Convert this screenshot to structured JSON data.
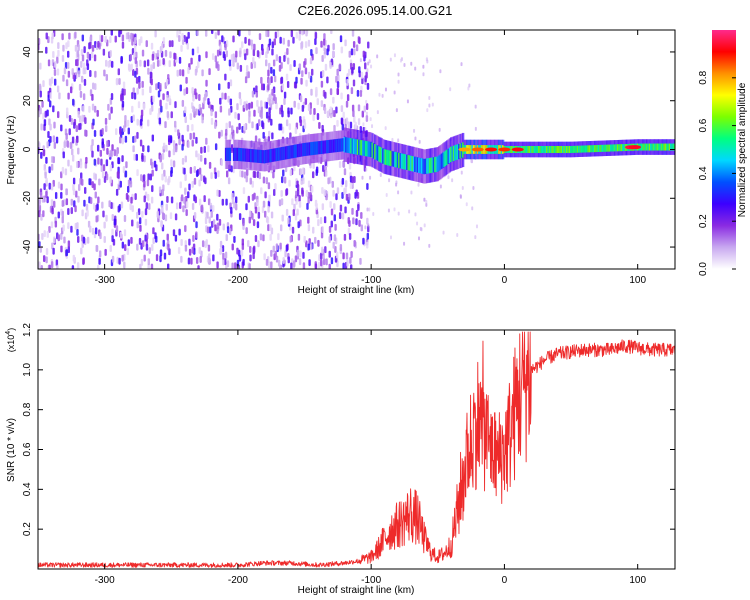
{
  "title": "C2E6.2026.095.14.00.G21",
  "chart_data": [
    {
      "type": "heatmap",
      "name": "spectrogram",
      "xlabel": "Height of straight line (km)",
      "ylabel": "Frequency (Hz)",
      "xlim": [
        -350,
        128
      ],
      "ylim": [
        -49,
        49
      ],
      "xticks": [
        -300,
        -200,
        -100,
        0,
        100
      ],
      "xtick_labels": [
        "-300",
        "-200",
        "-100",
        "0",
        "100"
      ],
      "yticks": [
        -40,
        -20,
        0,
        20,
        40
      ],
      "ytick_labels": [
        "-40",
        "-20",
        "0",
        "20",
        "40"
      ],
      "noise_region_end_km": -110,
      "tone_ridge": [
        {
          "x": -200,
          "f": -2
        },
        {
          "x": -180,
          "f": -3
        },
        {
          "x": -150,
          "f": 0
        },
        {
          "x": -120,
          "f": 2
        },
        {
          "x": -100,
          "f": 0
        },
        {
          "x": -90,
          "f": -3
        },
        {
          "x": -75,
          "f": -5
        },
        {
          "x": -60,
          "f": -7
        },
        {
          "x": -50,
          "f": -6
        },
        {
          "x": -40,
          "f": -2
        },
        {
          "x": -30,
          "f": 0
        },
        {
          "x": -20,
          "f": 0
        },
        {
          "x": 0,
          "f": 0
        },
        {
          "x": 50,
          "f": 0
        },
        {
          "x": 100,
          "f": 1
        },
        {
          "x": 128,
          "f": 1
        }
      ],
      "colorbar": {
        "label": "Normalized spectral amplitude",
        "range": [
          0,
          1
        ],
        "ticks": [
          0.0,
          0.2,
          0.4,
          0.6,
          0.8
        ],
        "tick_labels": [
          "0.0",
          "0.2",
          "0.4",
          "0.6",
          "0.8"
        ],
        "colors": [
          "#ffffff",
          "#c8a8f0",
          "#8a2be2",
          "#3c00ff",
          "#0050ff",
          "#00d8ff",
          "#00ff80",
          "#7cff00",
          "#ffff00",
          "#ff9000",
          "#ff0000",
          "#ff2a8c"
        ]
      }
    },
    {
      "type": "line",
      "name": "snr",
      "xlabel": "Height of straight line (km)",
      "ylabel": "SNR (10 * v/v)",
      "scale_note": "(x10",
      "scale_exponent": "4",
      "xlim": [
        -350,
        128
      ],
      "ylim": [
        0,
        1.2
      ],
      "xticks": [
        -300,
        -200,
        -100,
        0,
        100
      ],
      "xtick_labels": [
        "-300",
        "-200",
        "-100",
        "0",
        "100"
      ],
      "yticks": [
        0.2,
        0.4,
        0.6,
        0.8,
        1.0,
        1.2
      ],
      "ytick_labels": [
        "0.2",
        "0.4",
        "0.6",
        "0.8",
        "1.0",
        "1.2"
      ],
      "line_color": "#ee2a2a",
      "series": [
        {
          "name": "SNR",
          "x": [
            -350,
            -300,
            -250,
            -200,
            -180,
            -160,
            -140,
            -120,
            -110,
            -100,
            -95,
            -90,
            -85,
            -80,
            -75,
            -70,
            -65,
            -60,
            -55,
            -50,
            -45,
            -40,
            -35,
            -30,
            -25,
            -20,
            -15,
            -10,
            -5,
            0,
            5,
            10,
            15,
            20,
            25,
            30,
            40,
            50,
            60,
            70,
            80,
            90,
            100,
            110,
            120,
            128
          ],
          "y": [
            0.02,
            0.02,
            0.02,
            0.02,
            0.03,
            0.03,
            0.02,
            0.03,
            0.04,
            0.06,
            0.1,
            0.15,
            0.2,
            0.22,
            0.25,
            0.28,
            0.25,
            0.15,
            0.08,
            0.06,
            0.08,
            0.12,
            0.3,
            0.5,
            0.65,
            0.75,
            0.7,
            0.6,
            0.55,
            0.6,
            0.7,
            0.85,
            0.95,
            1.0,
            1.02,
            1.05,
            1.08,
            1.09,
            1.1,
            1.1,
            1.1,
            1.12,
            1.11,
            1.1,
            1.1,
            1.1
          ]
        }
      ]
    }
  ]
}
